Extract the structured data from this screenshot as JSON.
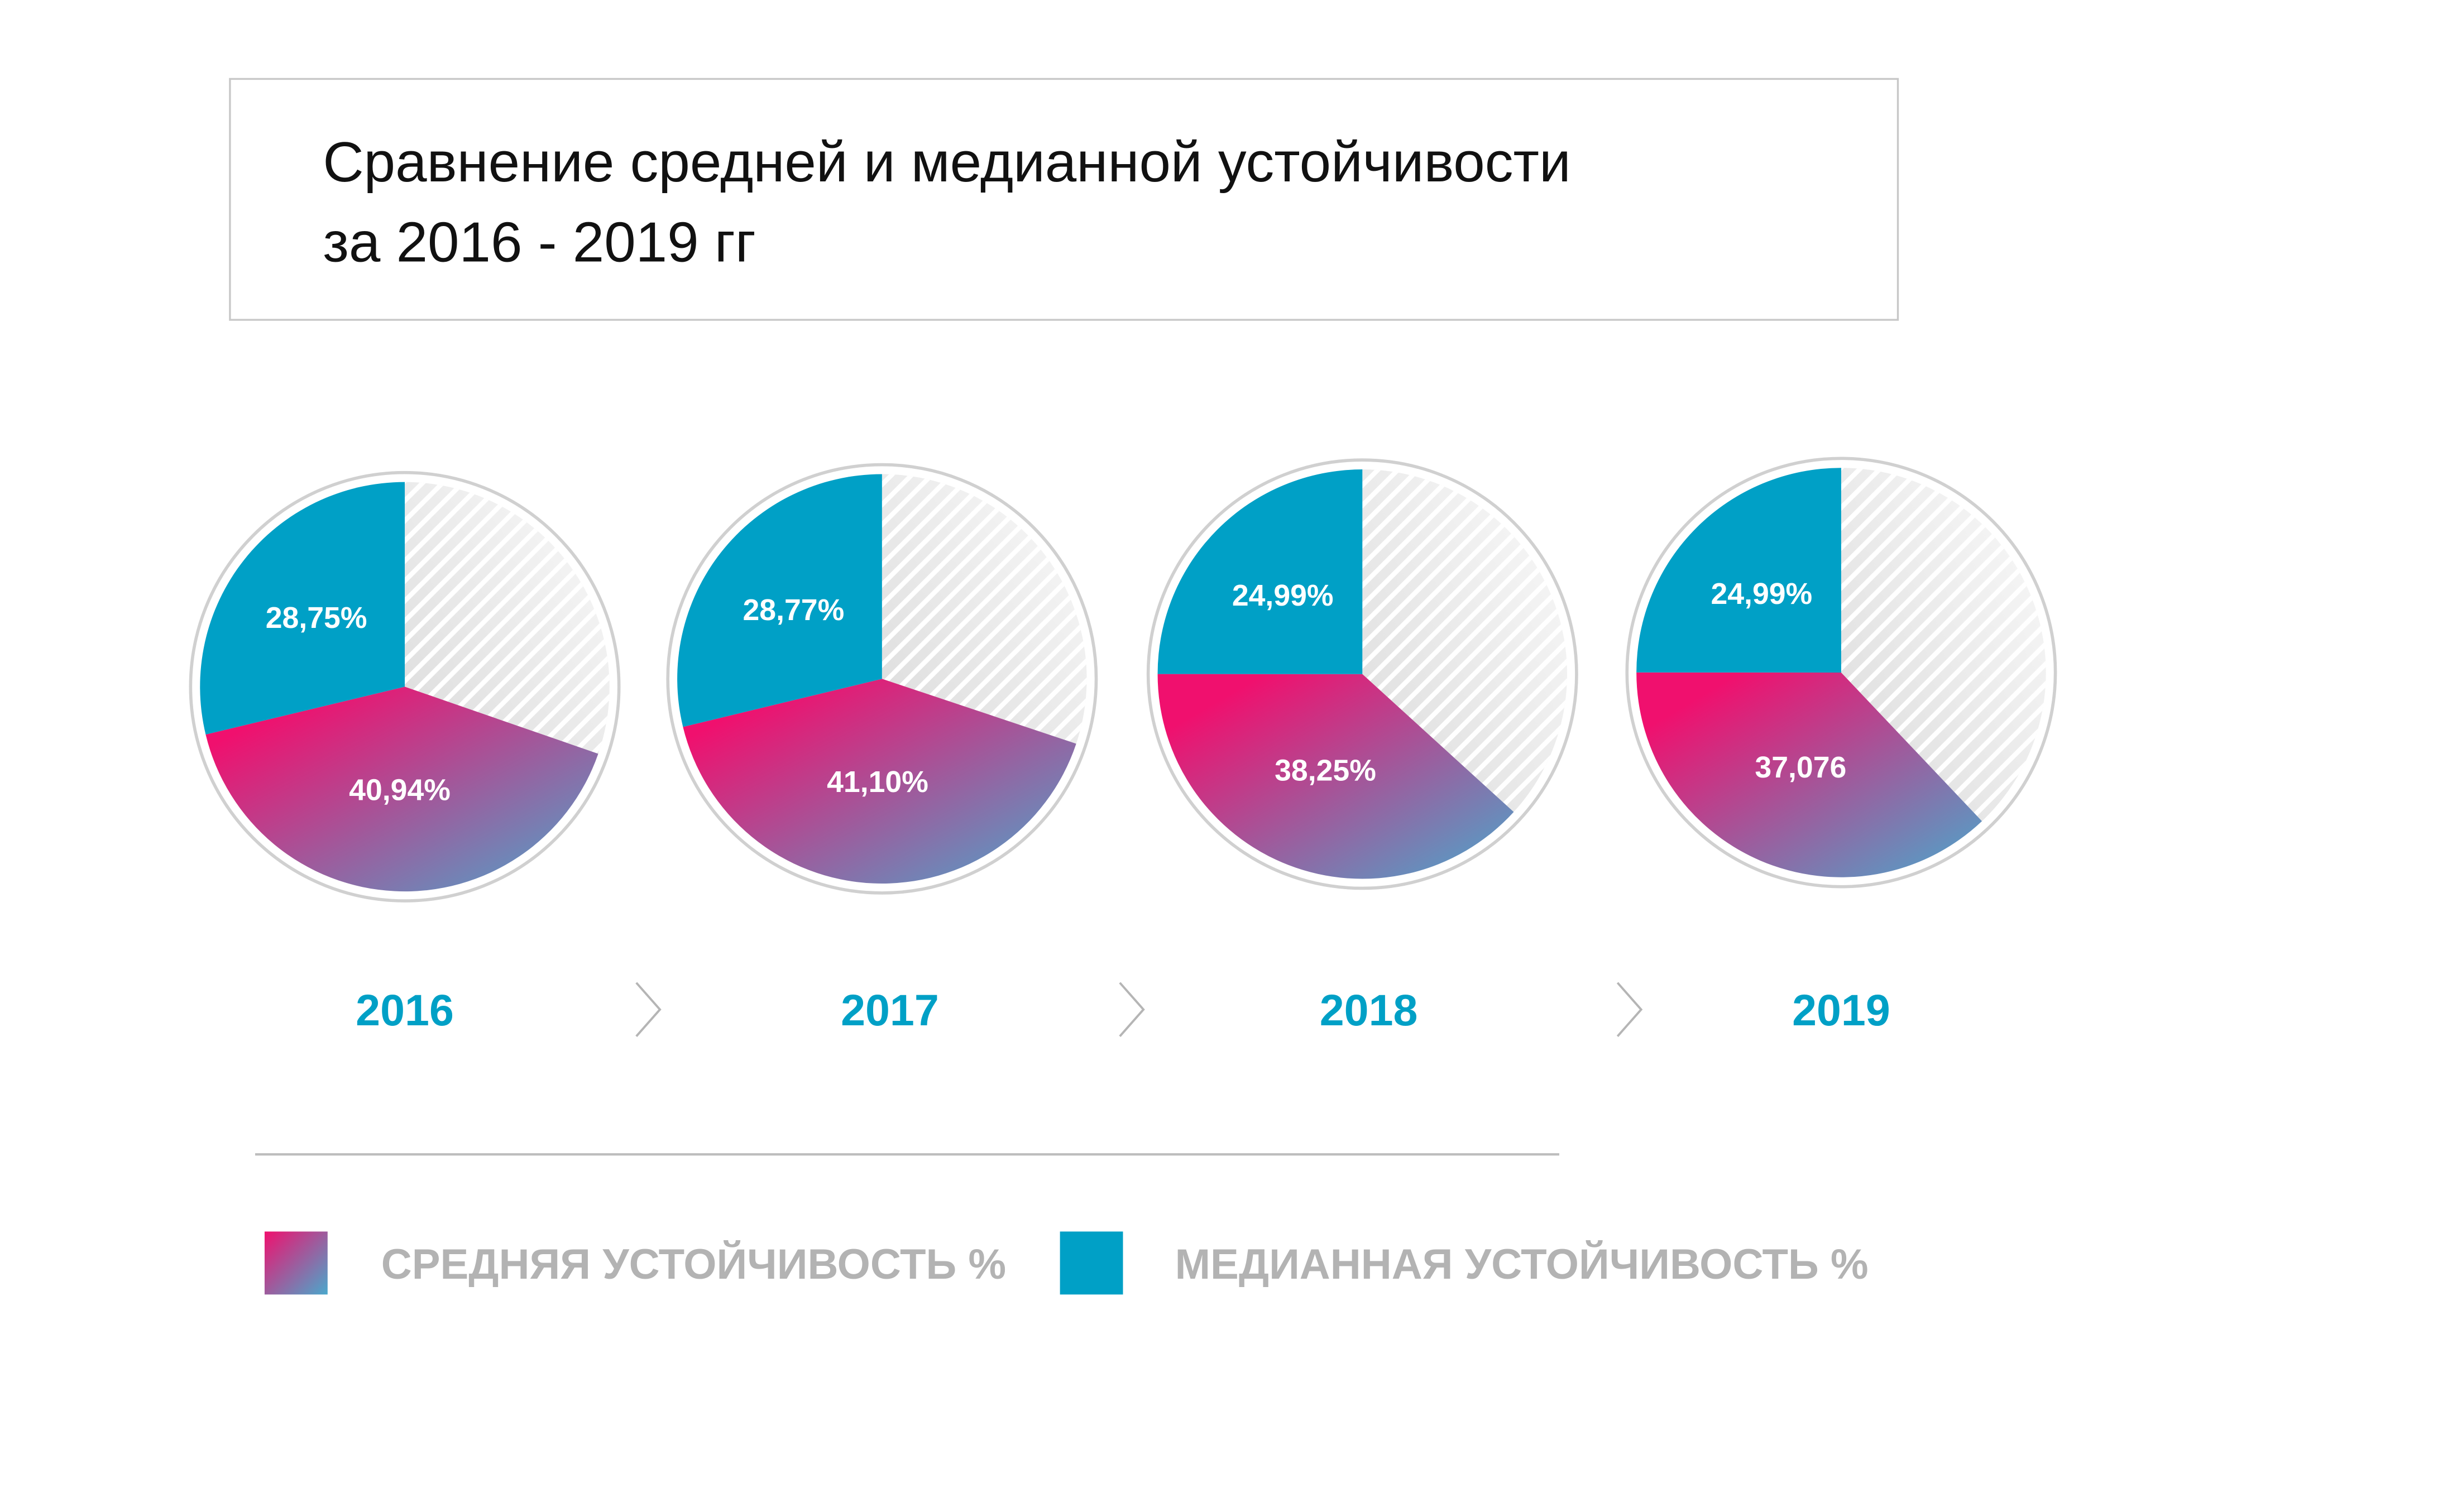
{
  "title_lines": [
    "Сравнение средней и медианной устойчивости",
    "за 2016 - 2019 гг"
  ],
  "colors": {
    "median": "#00a0c6",
    "mean_gradient_start": "#f0106e",
    "mean_gradient_end": "#4aa8cc",
    "remainder": "#e6e6e6",
    "year_text": "#00a0c6",
    "legend_text": "#b3b3b3"
  },
  "chart_data": {
    "type": "pie",
    "categories": [
      "2016",
      "2017",
      "2018",
      "2019"
    ],
    "series": [
      {
        "name": "МЕДИАННАЯ УСТОЙЧИВОСТЬ %",
        "values": [
          28.75,
          28.77,
          24.99,
          24.99
        ],
        "labels": [
          "28,75%",
          "28,77%",
          "24,99%",
          "24,99%"
        ]
      },
      {
        "name": "СРЕДНЯЯ УСТОЙЧИВОСТЬ %",
        "values": [
          40.94,
          41.1,
          38.25,
          37.076
        ],
        "labels": [
          "40,94%",
          "41,10%",
          "38,25%",
          "37,076"
        ]
      }
    ],
    "legend": {
      "placement": "bottom",
      "items": [
        "СРЕДНЯЯ УСТОЙЧИВОСТЬ %",
        "МЕДИАННАЯ УСТОЙЧИВОСТЬ %"
      ]
    }
  }
}
